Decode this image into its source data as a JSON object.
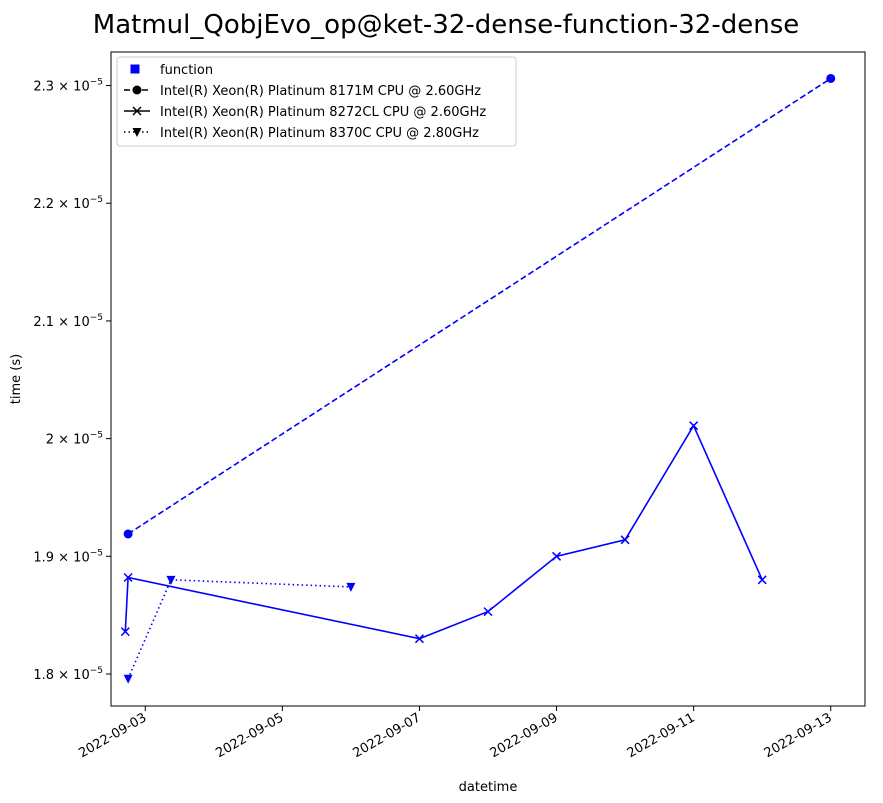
{
  "chart_data": {
    "type": "line",
    "title": "Matmul_QobjEvo_op@ket-32-dense-function-32-dense",
    "xlabel": "datetime",
    "ylabel": "time (s)",
    "x_ticks": [
      "2022-09-03",
      "2022-09-05",
      "2022-09-07",
      "2022-09-09",
      "2022-09-11",
      "2022-09-13"
    ],
    "y_ticks": [
      {
        "value": 1.8e-05,
        "mantissa": "1.8",
        "exponent": "−5"
      },
      {
        "value": 1.9e-05,
        "mantissa": "1.9",
        "exponent": "−5"
      },
      {
        "value": 2e-05,
        "mantissa": "2",
        "exponent": "−5"
      },
      {
        "value": 2.1e-05,
        "mantissa": "2.1",
        "exponent": "−5"
      },
      {
        "value": 2.2e-05,
        "mantissa": "2.2",
        "exponent": "−5"
      },
      {
        "value": 2.3e-05,
        "mantissa": "2.3",
        "exponent": "−5"
      }
    ],
    "xlim": [
      "2022-09-02T12:00",
      "2022-09-13T12:00"
    ],
    "ylim": [
      1.7728e-05,
      2.3285e-05
    ],
    "grid": false,
    "legend_position": "top-left",
    "legend_entries": [
      {
        "label": "function",
        "marker": "square",
        "line": "none"
      },
      {
        "label": "Intel(R) Xeon(R) Platinum 8171M CPU @ 2.60GHz",
        "marker": "circle",
        "line": "dashed"
      },
      {
        "label": "Intel(R) Xeon(R) Platinum 8272CL CPU @ 2.60GHz",
        "marker": "x",
        "line": "solid"
      },
      {
        "label": "Intel(R) Xeon(R) Platinum 8370C CPU @ 2.80GHz",
        "marker": "triangle-down",
        "line": "dotted"
      }
    ],
    "series": [
      {
        "name": "Intel(R) Xeon(R) Platinum 8171M CPU @ 2.60GHz",
        "group": "function",
        "color": "#0000ff",
        "marker": "circle",
        "line": "dashed",
        "points": [
          {
            "x": "2022-09-02T18:00",
            "y": 1.919e-05
          },
          {
            "x": "2022-09-13T00:00",
            "y": 2.306e-05
          }
        ]
      },
      {
        "name": "Intel(R) Xeon(R) Platinum 8272CL CPU @ 2.60GHz",
        "group": "function",
        "color": "#0000ff",
        "marker": "x",
        "line": "solid",
        "points": [
          {
            "x": "2022-09-02T17:00",
            "y": 1.836e-05
          },
          {
            "x": "2022-09-02T18:00",
            "y": 1.882e-05
          },
          {
            "x": "2022-09-07T00:00",
            "y": 1.83e-05
          },
          {
            "x": "2022-09-08T00:00",
            "y": 1.853e-05
          },
          {
            "x": "2022-09-09T00:00",
            "y": 1.9e-05
          },
          {
            "x": "2022-09-10T00:00",
            "y": 1.914e-05
          },
          {
            "x": "2022-09-11T00:00",
            "y": 2.011e-05
          },
          {
            "x": "2022-09-12T00:00",
            "y": 1.88e-05
          }
        ]
      },
      {
        "name": "Intel(R) Xeon(R) Platinum 8370C CPU @ 2.80GHz",
        "group": "function",
        "color": "#0000ff",
        "marker": "triangle-down",
        "line": "dotted",
        "points": [
          {
            "x": "2022-09-02T18:00",
            "y": 1.796e-05
          },
          {
            "x": "2022-09-03T09:00",
            "y": 1.88e-05
          },
          {
            "x": "2022-09-06T00:00",
            "y": 1.874e-05
          }
        ]
      }
    ]
  }
}
